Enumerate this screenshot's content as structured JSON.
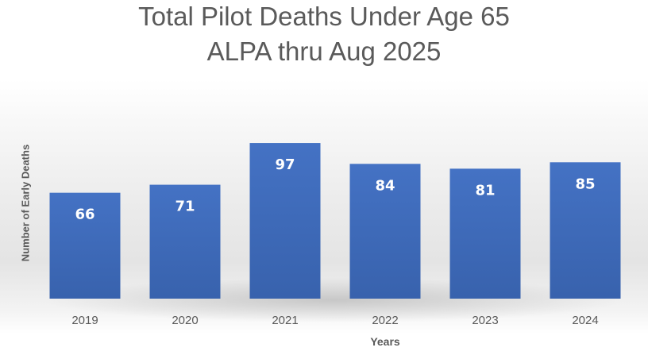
{
  "chart_data": {
    "type": "bar",
    "title": "Total Pilot Deaths Under Age 65",
    "subtitle": "ALPA thru Aug 2025",
    "categories": [
      "2019",
      "2020",
      "2021",
      "2022",
      "2023",
      "2024"
    ],
    "values": [
      66,
      71,
      97,
      84,
      81,
      85
    ],
    "xlabel": "Years",
    "ylabel": "Number of Early Deaths",
    "ylim": [
      0,
      100
    ],
    "grid": false,
    "bar_color": "#3f6fc3",
    "label_color": "#ffffff"
  }
}
